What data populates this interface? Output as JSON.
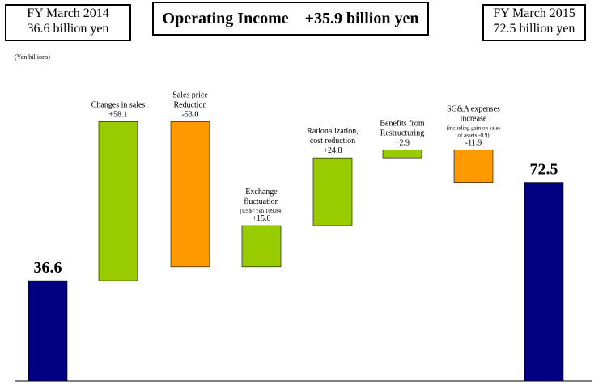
{
  "header": {
    "left_line1": "FY March 2014",
    "left_line2": "36.6 billion yen",
    "title": "Operating Income    +35.9 billion yen",
    "right_line1": "FY March 2015",
    "right_line2": "72.5 billion yen"
  },
  "unit_note": "(Yen billions)",
  "chart_data": {
    "type": "bar",
    "subtype": "waterfall",
    "unit": "(Yen billions)",
    "ylim": [
      0,
      95
    ],
    "grid": false,
    "legend": "none",
    "colors": {
      "total": "#000080",
      "increase": "#99cc00",
      "decrease": "#ff9900"
    },
    "steps": [
      {
        "kind": "total",
        "value": 36.6,
        "value_label": "36.6",
        "label_lines": []
      },
      {
        "kind": "change",
        "value": 58.1,
        "value_label": "+58.1",
        "label_lines": [
          "Changes in sales"
        ]
      },
      {
        "kind": "change",
        "value": -53.0,
        "value_label": "-53.0",
        "label_lines": [
          "Sales price",
          "Reduction"
        ]
      },
      {
        "kind": "change",
        "value": 15.0,
        "value_label": "+15.0",
        "label_lines": [
          "Exchange",
          "fluctuation"
        ],
        "note_lines": [
          "(US$=Yen 109.84)"
        ]
      },
      {
        "kind": "change",
        "value": 24.8,
        "value_label": "+24.8",
        "label_lines": [
          "Rationalization,",
          "cost reduction"
        ]
      },
      {
        "kind": "change",
        "value": 2.9,
        "value_label": "+2.9",
        "label_lines": [
          "Benefits from",
          "Restructuring"
        ]
      },
      {
        "kind": "change",
        "value": -11.9,
        "value_label": "-11.9",
        "label_lines": [
          "SG&A expenses",
          "increase"
        ],
        "note_lines": [
          "(including gain on sales",
          "of assets  -0.9)"
        ]
      },
      {
        "kind": "total",
        "value": 72.5,
        "value_label": "72.5",
        "label_lines": []
      }
    ]
  }
}
